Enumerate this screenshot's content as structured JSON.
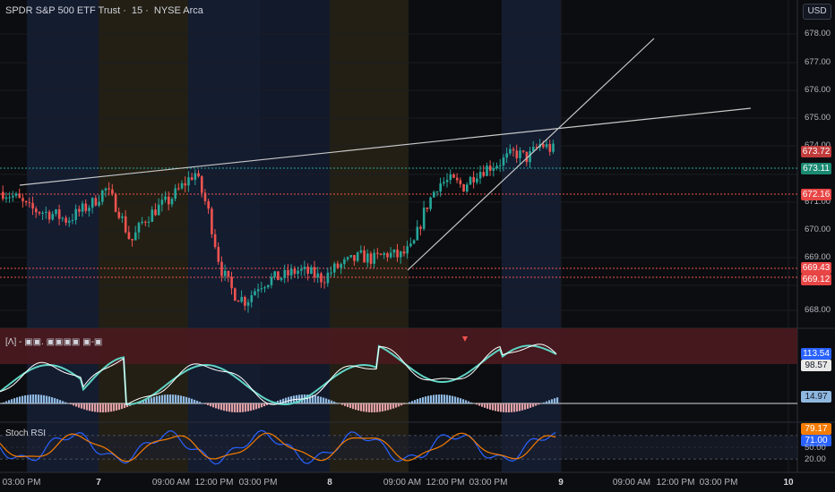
{
  "header": {
    "symbol": "SPDR S&P 500 ETF Trust",
    "interval": "15",
    "exchange": "NYSE Arca",
    "sep": "·",
    "currency": "USD"
  },
  "colors": {
    "up": "#26a69a",
    "down": "#ef5350",
    "session_blue": "#16213a",
    "session_orange": "#2a2314",
    "trendline": "#c8c8c8"
  },
  "price_axis": {
    "ticks": [
      "678.00",
      "677.00",
      "676.00",
      "675.00",
      "674.00",
      "673.00",
      "672.00",
      "671.00",
      "670.00",
      "669.00",
      "668.00"
    ]
  },
  "price_labels": [
    {
      "value": "673.72",
      "bg": "#c23b3b"
    },
    {
      "value": "673.11",
      "bg": "#1b8a72"
    },
    {
      "value": "672.16",
      "bg": "#e84545"
    },
    {
      "value": "669.43",
      "bg": "#e84545"
    },
    {
      "value": "669.12",
      "bg": "#e84545"
    }
  ],
  "indicator": {
    "title": "[Λ] - ▣▣. ▣▣▣▣ ▣-▣",
    "labels": [
      {
        "value": "113.54",
        "bg": "#2962ff",
        "color": "#ffffff"
      },
      {
        "value": "98.57",
        "bg": "#e8e8e8",
        "color": "#131722"
      },
      {
        "value": "14.97",
        "bg": "#8fb8e0",
        "color": "#131722"
      }
    ]
  },
  "stoch": {
    "title": "Stoch RSI",
    "ticks": [
      "80.00",
      "50.00",
      "20.00"
    ],
    "labels": [
      {
        "value": "79.17",
        "bg": "#f57c00"
      },
      {
        "value": "71.00",
        "bg": "#2962ff"
      }
    ]
  },
  "time_axis": [
    {
      "label": "03:00 PM",
      "bold": false
    },
    {
      "label": "7",
      "bold": true
    },
    {
      "label": "09:00 AM",
      "bold": false
    },
    {
      "label": "12:00 PM",
      "bold": false
    },
    {
      "label": "03:00 PM",
      "bold": false
    },
    {
      "label": "8",
      "bold": true
    },
    {
      "label": "09:00 AM",
      "bold": false
    },
    {
      "label": "12:00 PM",
      "bold": false
    },
    {
      "label": "03:00 PM",
      "bold": false
    },
    {
      "label": "9",
      "bold": true
    },
    {
      "label": "09:00 AM",
      "bold": false
    },
    {
      "label": "12:00 PM",
      "bold": false
    },
    {
      "label": "03:00 PM",
      "bold": false
    },
    {
      "label": "10",
      "bold": true
    }
  ],
  "chart_data": {
    "type": "candlestick",
    "y_range": [
      667.5,
      678.4
    ],
    "horizontal_levels": [
      673.11,
      672.16,
      669.43,
      669.12
    ],
    "close_path": [
      672.2,
      672.0,
      671.6,
      671.5,
      671.4,
      671.2,
      671.5,
      671.8,
      672.3,
      671.6,
      670.4,
      671.2,
      671.6,
      671.9,
      672.4,
      672.9,
      671.6,
      669.5,
      668.6,
      668.3,
      668.9,
      669.1,
      669.2,
      669.4,
      669.3,
      669.1,
      669.5,
      669.7,
      669.9,
      669.8,
      670.0,
      669.9,
      670.2,
      671.6,
      672.5,
      672.6,
      672.4,
      672.9,
      673.1,
      673.3,
      673.6,
      673.4,
      673.9,
      673.7
    ]
  }
}
